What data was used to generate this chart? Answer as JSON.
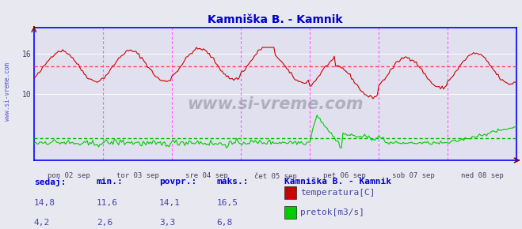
{
  "title": "Kamniška B. - Kamnik",
  "title_color": "#0000cc",
  "bg_color": "#e8e8f0",
  "plot_bg_color": "#e0e0ee",
  "x_min": 0,
  "x_max": 336,
  "y_min": 0,
  "y_max": 20,
  "y_ticks": [
    10,
    16
  ],
  "y_avg_temp": 14.1,
  "y_avg_flow": 3.3,
  "grid_color": "#ffffff",
  "dotted_avg_color_temp": "#ff4444",
  "dotted_avg_color_flow": "#00bb00",
  "temp_line_color": "#cc0000",
  "flow_line_color": "#00cc00",
  "axis_color": "#0000ff",
  "tick_label_color": "#444466",
  "day_line_color": "#ff44ff",
  "xlabel_color": "#444466",
  "side_label_color": "#4444cc",
  "day_labels": [
    "pon 02 sep",
    "tor 03 sep",
    "sre 04 sep",
    "čet 05 sep",
    "pet 06 sep",
    "sob 07 sep",
    "ned 08 sep"
  ],
  "day_positions": [
    0,
    48,
    96,
    144,
    192,
    240,
    288
  ],
  "watermark": "www.si-vreme.com",
  "legend_title": "Kamniška B. - Kamnik",
  "legend_items": [
    {
      "label": "temperatura[C]",
      "color": "#cc0000"
    },
    {
      "label": "pretok[m3/s]",
      "color": "#00cc00"
    }
  ],
  "stats": {
    "headers": [
      "sedaj:",
      "min.:",
      "povpr.:",
      "maks.:"
    ],
    "temp": [
      "14,8",
      "11,6",
      "14,1",
      "16,5"
    ],
    "flow": [
      "4,2",
      "2,6",
      "3,3",
      "6,8"
    ]
  }
}
